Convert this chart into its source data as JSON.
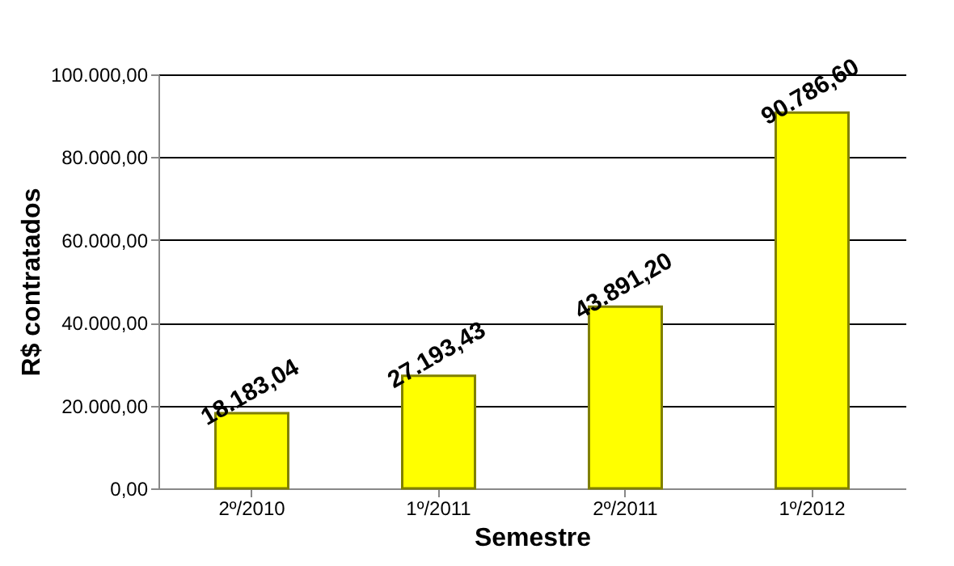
{
  "chart_data": {
    "type": "bar",
    "xlabel": "Semestre",
    "ylabel": "R$ contratados",
    "categories": [
      "2º/2010",
      "1º/2011",
      "2º/2011",
      "1º/2012"
    ],
    "values": [
      18183.04,
      27193.43,
      43891.2,
      90786.6
    ],
    "color": "#ffff00",
    "value_labels": [
      "18.183,04",
      "27.193,43",
      "43.891,20",
      "90.786,60"
    ],
    "ylim": [
      0,
      100000
    ],
    "yticks": [
      {
        "value": 0,
        "label": "0,00"
      },
      {
        "value": 20000,
        "label": "20.000,00"
      },
      {
        "value": 40000,
        "label": "40.000,00"
      },
      {
        "value": 60000,
        "label": "60.000,00"
      },
      {
        "value": 80000,
        "label": "80.000,00"
      },
      {
        "value": 100000,
        "label": "100.000,00"
      }
    ],
    "grid": "y"
  }
}
